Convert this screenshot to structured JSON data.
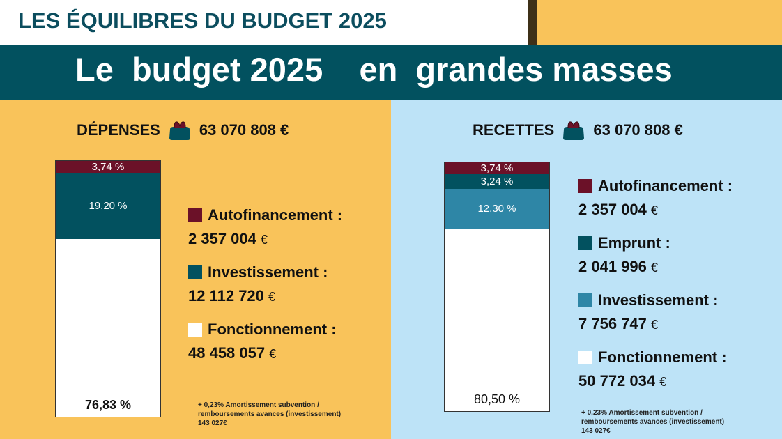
{
  "header": {
    "kicker": "LES ÉQUILIBRES DU BUDGET 2025",
    "title": "Le  budget 2025    en  grandes masses"
  },
  "colors": {
    "orange": "#F9C35A",
    "light_blue": "#BDE3F7",
    "teal": "#02515F",
    "maroon": "#6B1128",
    "mid_blue": "#2E86A6",
    "white": "#FFFFFF"
  },
  "chart_data": [
    {
      "type": "bar",
      "stacked": true,
      "title": "DÉPENSES",
      "total": "63 070 808 €",
      "icon": "purse-icon",
      "segments": [
        {
          "name": "Autofinancement",
          "percent": 3.74,
          "label": "3,74 %",
          "amount": "2 357 004",
          "color": "#6B1128"
        },
        {
          "name": "Investissement",
          "percent": 19.2,
          "label": "19,20 %",
          "amount": "12 112 720",
          "color": "#02515F"
        },
        {
          "name": "Fonctionnement",
          "percent": 76.83,
          "label": "76,83 %",
          "amount": "48 458 057",
          "color": "#FFFFFF"
        }
      ],
      "note": [
        "+ 0,23% Amortissement subvention /",
        "remboursements avances (investissement)",
        "143 027€"
      ]
    },
    {
      "type": "bar",
      "stacked": true,
      "title": "RECETTES",
      "total": "63 070 808 €",
      "icon": "purse-icon",
      "segments": [
        {
          "name": "Autofinancement",
          "percent": 3.74,
          "label": "3,74 %",
          "amount": "2 357 004",
          "color": "#6B1128"
        },
        {
          "name": "Emprunt",
          "percent": 3.24,
          "label": "3,24 %",
          "amount": "2 041 996",
          "color": "#02515F"
        },
        {
          "name": "Investissement",
          "percent": 12.3,
          "label": "12,30 %",
          "amount": "7 756 747",
          "color": "#2E86A6"
        },
        {
          "name": "Fonctionnement",
          "percent": 80.5,
          "label": "80,50 %",
          "amount": "50 772 034",
          "color": "#FFFFFF"
        }
      ],
      "note": [
        "+ 0,23% Amortissement subvention /",
        "remboursements avances (investissement)",
        "143 027€"
      ]
    }
  ],
  "currency": "€",
  "colon": " :"
}
